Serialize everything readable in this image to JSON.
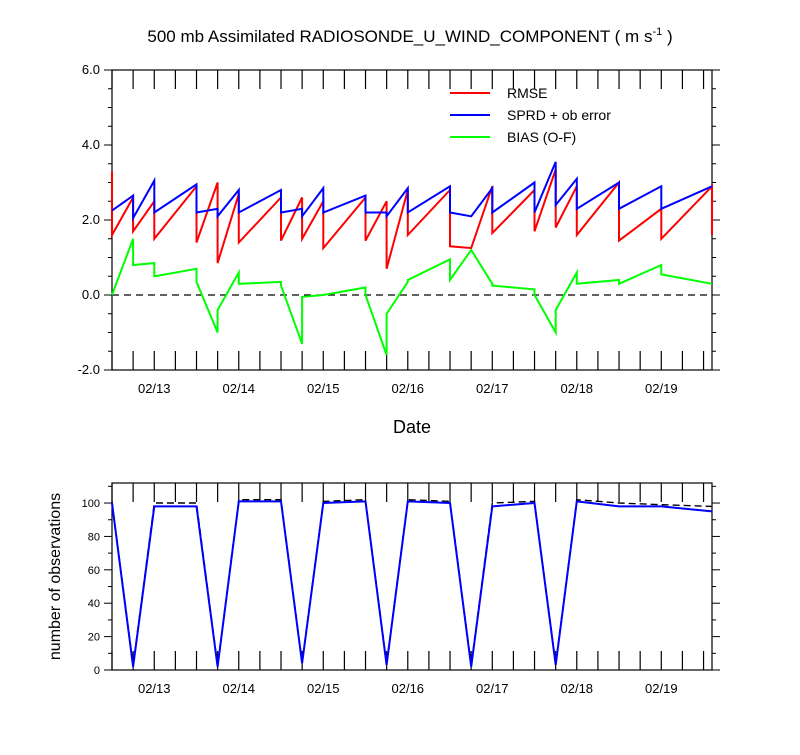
{
  "page": {
    "title_main": "500 mb Assimilated RADIOSONDE_U_WIND_COMPONENT ( m s",
    "title_sup": "-1",
    "title_end": " )"
  },
  "colors": {
    "rmse": "#ff0000",
    "sprd": "#0000ff",
    "bias": "#00ff00",
    "zero_line": "#000000",
    "possible_obs": "#000000",
    "used_obs": "#0000ff"
  },
  "chart_data": [
    {
      "type": "line",
      "title": "500 mb Assimilated RADIOSONDE_U_WIND_COMPONENT ( m s-1 )",
      "xlabel": "Date",
      "ylabel": "",
      "xlim": [
        0,
        7.1
      ],
      "ylim": [
        -2.0,
        6.0
      ],
      "y_ticks": [
        -2.0,
        0.0,
        2.0,
        4.0,
        6.0
      ],
      "y_tick_labels": [
        "-2.0",
        "0.0",
        "2.0",
        "4.0",
        "6.0"
      ],
      "x_ticks": [
        0.5,
        1.5,
        2.5,
        3.5,
        4.5,
        5.5,
        6.5
      ],
      "x_tick_labels": [
        "02/13",
        "02/14",
        "02/15",
        "02/16",
        "02/17",
        "02/18",
        "02/19"
      ],
      "legend_position": "top-right",
      "reference_line": 0.0,
      "series": [
        {
          "name": "RMSE",
          "color_key": "rmse",
          "x": [
            0,
            0,
            0.25,
            0.25,
            0.5,
            0.5,
            1.0,
            1.0,
            1.25,
            1.25,
            1.5,
            1.5,
            2.0,
            2.0,
            2.25,
            2.25,
            2.5,
            2.5,
            3.0,
            3.0,
            3.25,
            3.25,
            3.5,
            3.5,
            4.0,
            4.0,
            4.25,
            4.25,
            4.5,
            4.5,
            5.0,
            5.0,
            5.25,
            5.25,
            5.5,
            5.5,
            6.0,
            6.0,
            6.5,
            6.5,
            7.1,
            7.1
          ],
          "y": [
            3.3,
            1.6,
            2.6,
            1.7,
            2.5,
            1.5,
            2.9,
            1.4,
            3.0,
            0.85,
            2.7,
            1.4,
            2.6,
            1.45,
            2.6,
            1.5,
            2.5,
            1.25,
            2.6,
            1.45,
            2.5,
            0.7,
            2.8,
            1.6,
            2.8,
            1.3,
            1.25,
            1.25,
            2.9,
            1.65,
            2.8,
            1.7,
            3.35,
            1.8,
            2.9,
            1.6,
            3.0,
            1.45,
            2.3,
            1.5,
            2.9,
            1.6
          ]
        },
        {
          "name": "SPRD + ob error",
          "color_key": "sprd",
          "x": [
            0,
            0.25,
            0.25,
            0.5,
            0.5,
            1.0,
            1.0,
            1.25,
            1.25,
            1.5,
            1.5,
            2.0,
            2.0,
            2.25,
            2.25,
            2.5,
            2.5,
            3.0,
            3.0,
            3.25,
            3.25,
            3.5,
            3.5,
            4.0,
            4.0,
            4.25,
            4.25,
            4.5,
            4.5,
            5.0,
            5.0,
            5.25,
            5.25,
            5.5,
            5.5,
            6.0,
            6.0,
            6.5,
            6.5,
            7.1
          ],
          "y": [
            2.25,
            2.65,
            2.05,
            3.05,
            2.2,
            2.95,
            2.2,
            2.3,
            2.1,
            2.8,
            2.2,
            2.8,
            2.2,
            2.3,
            2.1,
            2.85,
            2.2,
            2.65,
            2.2,
            2.2,
            2.1,
            2.85,
            2.2,
            2.9,
            2.2,
            2.1,
            2.1,
            2.85,
            2.2,
            3.0,
            2.2,
            3.55,
            2.4,
            3.1,
            2.3,
            3.0,
            2.3,
            2.9,
            2.3,
            2.9
          ]
        },
        {
          "name": "BIAS (O-F)",
          "color_key": "bias",
          "x": [
            0,
            0.25,
            0.25,
            0.5,
            0.5,
            1.0,
            1.0,
            1.25,
            1.25,
            1.5,
            1.5,
            2.0,
            2.0,
            2.25,
            2.25,
            2.5,
            2.5,
            3.0,
            3.0,
            3.25,
            3.25,
            3.5,
            3.5,
            4.0,
            4.0,
            4.25,
            4.25,
            4.5,
            4.5,
            5.0,
            5.0,
            5.25,
            5.25,
            5.5,
            5.5,
            6.0,
            6.0,
            6.5,
            6.5,
            7.1
          ],
          "y": [
            0.0,
            1.5,
            0.8,
            0.85,
            0.5,
            0.7,
            0.35,
            -1.0,
            -0.4,
            0.6,
            0.3,
            0.35,
            0.25,
            -1.3,
            -0.05,
            0.0,
            0.0,
            0.2,
            0.0,
            -1.6,
            -0.5,
            0.35,
            0.4,
            0.95,
            0.4,
            1.2,
            1.2,
            0.3,
            0.25,
            0.15,
            0.0,
            -1.0,
            -0.4,
            0.6,
            0.3,
            0.4,
            0.3,
            0.8,
            0.55,
            0.3
          ]
        }
      ]
    },
    {
      "type": "line",
      "title": "",
      "xlabel": "",
      "ylabel": "number of observations",
      "xlim": [
        0,
        7.1
      ],
      "ylim": [
        0,
        112
      ],
      "y_ticks": [
        0,
        20,
        40,
        60,
        80,
        100
      ],
      "y_tick_labels": [
        "0",
        "20",
        "40",
        "60",
        "80",
        "100"
      ],
      "x_ticks": [
        0.5,
        1.5,
        2.5,
        3.5,
        4.5,
        5.5,
        6.5
      ],
      "x_tick_labels": [
        "02/13",
        "02/14",
        "02/15",
        "02/16",
        "02/17",
        "02/18",
        "02/19"
      ],
      "series": [
        {
          "name": "",
          "style": "dashed",
          "color_key": "possible_obs",
          "x": [
            0,
            0.25,
            0.5,
            1.0,
            1.25,
            1.5,
            2.0,
            2.25,
            2.5,
            3.0,
            3.25,
            3.5,
            4.0,
            4.25,
            4.5,
            5.0,
            5.25,
            5.5,
            6.0,
            6.5,
            7.1
          ],
          "y": [
            101,
            3,
            100,
            100,
            3,
            102,
            102,
            5,
            101,
            102,
            4,
            102,
            101,
            3,
            100,
            101,
            4,
            102,
            100,
            99,
            98
          ]
        },
        {
          "name": "",
          "style": "solid",
          "color_key": "used_obs",
          "x": [
            0,
            0.25,
            0.5,
            1.0,
            1.25,
            1.5,
            2.0,
            2.25,
            2.5,
            3.0,
            3.25,
            3.5,
            4.0,
            4.25,
            4.5,
            5.0,
            5.25,
            5.5,
            6.0,
            6.5,
            7.1
          ],
          "y": [
            100,
            2,
            98,
            98,
            2,
            101,
            101,
            4,
            100,
            101,
            3,
            101,
            100,
            2,
            98,
            100,
            3,
            101,
            98,
            98,
            95
          ]
        }
      ]
    }
  ]
}
